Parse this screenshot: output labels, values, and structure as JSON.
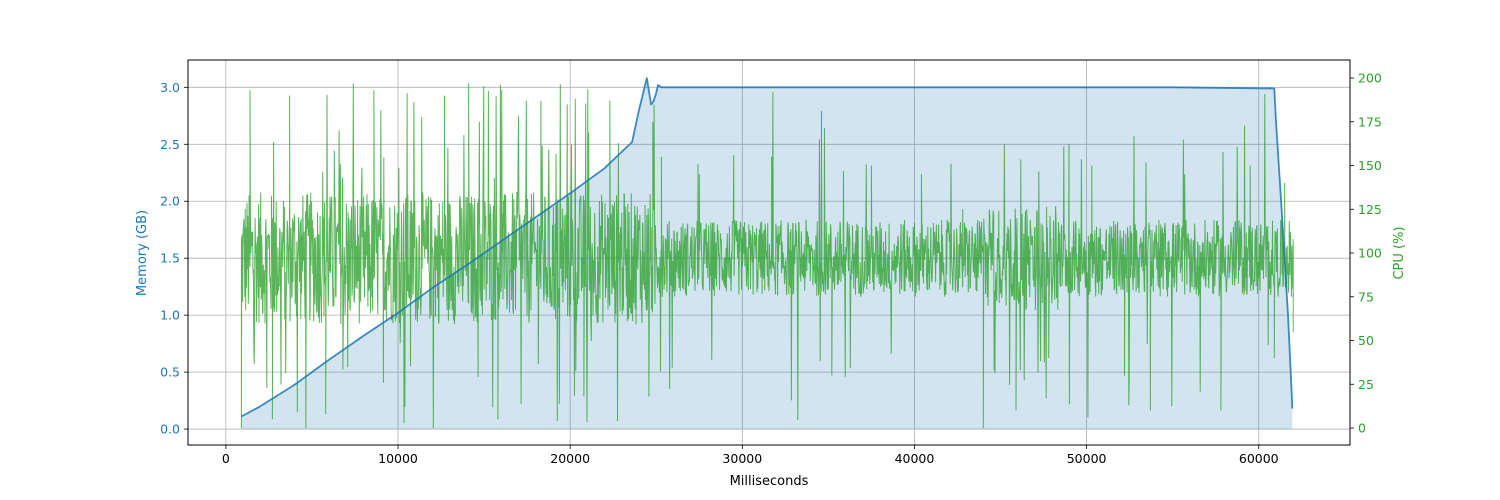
{
  "chart_data": {
    "type": "line",
    "title": "",
    "xlabel": "Milliseconds",
    "ylabel_left": "Memory (GB)",
    "ylabel_right": "CPU (%)",
    "xlim": [
      -2200,
      65300
    ],
    "ylim_left": [
      -0.14,
      3.24
    ],
    "ylim_right": [
      -9.7,
      210.3
    ],
    "x_ticks": [
      0,
      10000,
      20000,
      30000,
      40000,
      50000,
      60000
    ],
    "y_ticks_left": [
      0.0,
      0.5,
      1.0,
      1.5,
      2.0,
      2.5,
      3.0
    ],
    "y_ticks_right": [
      0,
      25,
      50,
      75,
      100,
      125,
      150,
      175,
      200
    ],
    "grid": true,
    "colors": {
      "memory": "#1f77b4",
      "memory_fill": "#1f77b4",
      "cpu": "#2ca02c"
    },
    "series": [
      {
        "name": "Memory (GB)",
        "axis": "left",
        "style": "line+fill",
        "x": [
          900,
          2000,
          4000,
          6000,
          8000,
          10000,
          12000,
          14000,
          16000,
          18000,
          20000,
          22000,
          23600,
          24000,
          24450,
          24700,
          24850,
          25000,
          25100,
          25300,
          27000,
          35000,
          45000,
          55000,
          60900,
          61000,
          61300,
          61700,
          61900,
          61950
        ],
        "y": [
          0.11,
          0.2,
          0.39,
          0.61,
          0.82,
          1.02,
          1.24,
          1.44,
          1.65,
          1.86,
          2.07,
          2.29,
          2.52,
          2.8,
          3.08,
          2.85,
          2.88,
          2.95,
          3.02,
          3.0,
          3.0,
          3.0,
          3.0,
          3.0,
          2.99,
          2.7,
          2.0,
          1.0,
          0.35,
          0.18
        ]
      },
      {
        "name": "CPU (%)",
        "axis": "right",
        "style": "line",
        "x_range": [
          900,
          62000
        ],
        "x": [
          900,
          1400,
          2700,
          3700,
          5800,
          8600,
          10400,
          12700,
          14100,
          15800,
          18300,
          20800,
          22300,
          23600,
          24800,
          25300,
          27500,
          31700,
          35200,
          37500,
          40400,
          42800,
          44000,
          45900,
          47800,
          50300,
          52200,
          53700,
          55700,
          57800,
          59500,
          60900,
          61500,
          62000
        ],
        "y": [
          0,
          193,
          5,
          190,
          8,
          193,
          12,
          190,
          197,
          5,
          187,
          18,
          187,
          98,
          175,
          155,
          145,
          155,
          30,
          150,
          145,
          125,
          0,
          10,
          40,
          150,
          30,
          10,
          145,
          10,
          150,
          40,
          140,
          55
        ]
      }
    ]
  }
}
